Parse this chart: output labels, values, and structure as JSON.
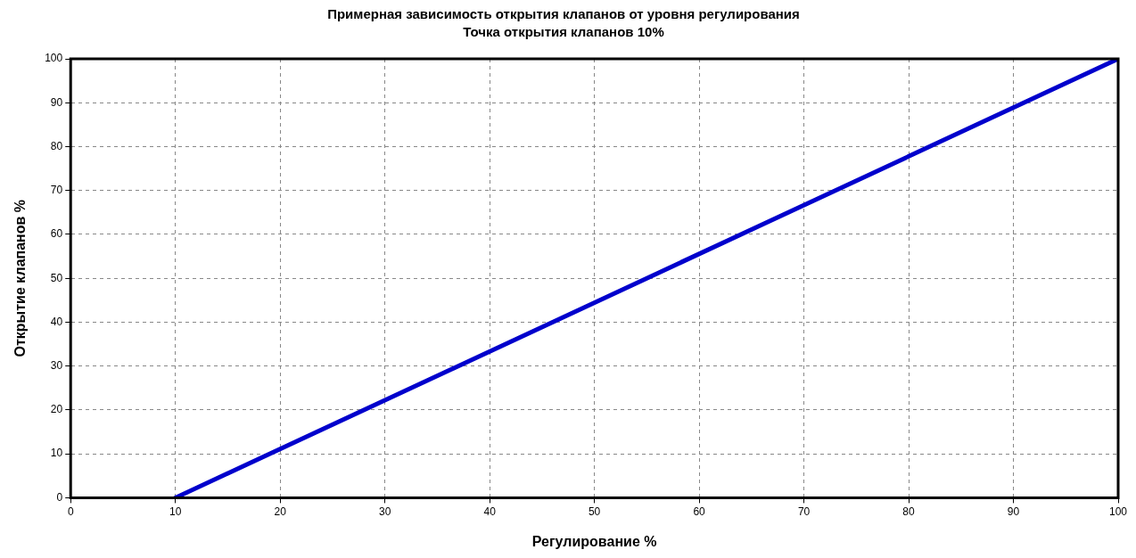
{
  "chart_data": {
    "type": "line",
    "title": "Примерная зависимость открытия клапанов от уровня регулирования",
    "subtitle": "Точка открытия клапанов 10%",
    "xlabel": "Регулирование %",
    "ylabel": "Открытие клапанов %",
    "x": [
      10,
      100
    ],
    "series": [
      {
        "color": "#0000cc",
        "values": [
          0,
          100
        ]
      }
    ],
    "xlim": [
      0,
      100
    ],
    "xticks": [
      0,
      10,
      20,
      30,
      40,
      50,
      60,
      70,
      80,
      90,
      100
    ],
    "ylim": [
      0,
      100
    ],
    "yticks": [
      0,
      10,
      20,
      30,
      40,
      50,
      60,
      70,
      80,
      90,
      100
    ],
    "grid": true,
    "legend": false,
    "marker": "none",
    "line_style": "solid"
  }
}
